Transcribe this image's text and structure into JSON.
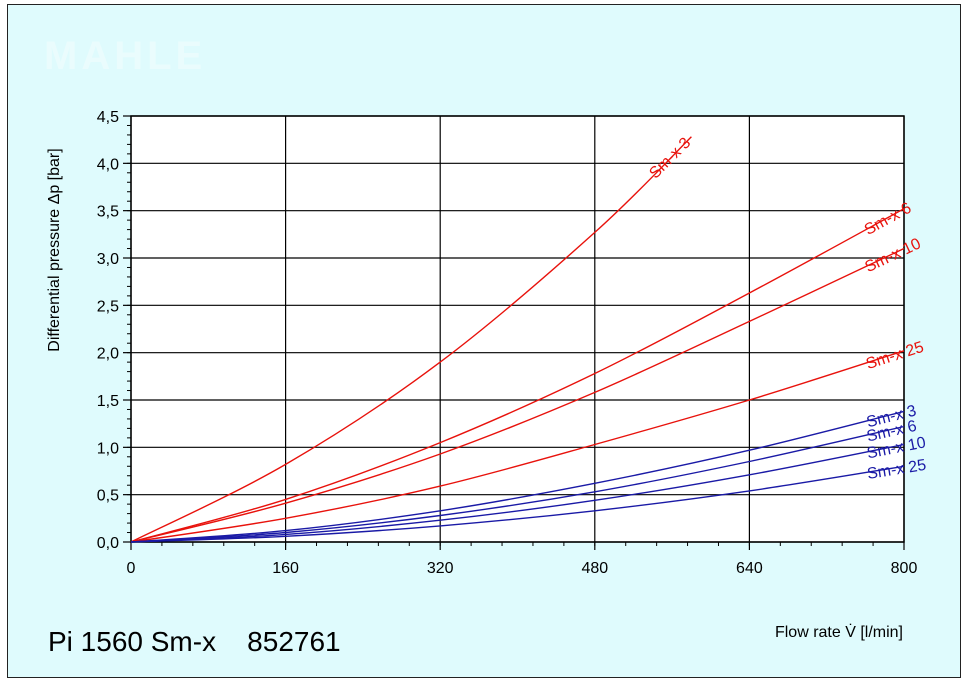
{
  "watermark": "MAHLE",
  "product_label": "Pi 1560 Sm-x    852761",
  "chart_data": {
    "type": "line",
    "title": "",
    "xlabel": "Flow rate V̇ [l/min]",
    "ylabel": "Differential pressure Δp [bar]",
    "xlim": [
      0,
      800
    ],
    "ylim": [
      0,
      4.5
    ],
    "x_ticks": [
      0,
      160,
      320,
      480,
      640,
      800
    ],
    "x_tick_labels": [
      "0",
      "160",
      "320",
      "480",
      "640",
      "800"
    ],
    "y_ticks": [
      0,
      0.5,
      1.0,
      1.5,
      2.0,
      2.5,
      3.0,
      3.5,
      4.0,
      4.5
    ],
    "y_tick_labels": [
      "0,0",
      "0,5",
      "1,0",
      "1,5",
      "2,0",
      "2,5",
      "3,0",
      "3,5",
      "4,0",
      "4,5"
    ],
    "grid": true,
    "series": [
      {
        "name": "Sm-x 3",
        "color": "#e8120c",
        "x": [
          0,
          160,
          320,
          480,
          580
        ],
        "y": [
          0,
          0.82,
          1.9,
          3.27,
          4.28
        ]
      },
      {
        "name": "Sm-x 6",
        "color": "#e8120c",
        "x": [
          0,
          160,
          320,
          480,
          640,
          800
        ],
        "y": [
          0,
          0.45,
          1.05,
          1.78,
          2.63,
          3.52
        ]
      },
      {
        "name": "Sm-x 10",
        "color": "#e8120c",
        "x": [
          0,
          160,
          320,
          480,
          640,
          800
        ],
        "y": [
          0,
          0.41,
          0.93,
          1.58,
          2.33,
          3.1
        ]
      },
      {
        "name": "Sm-x 25",
        "color": "#e8120c",
        "x": [
          0,
          160,
          320,
          480,
          640,
          800
        ],
        "y": [
          0,
          0.25,
          0.59,
          1.03,
          1.5,
          2.02
        ]
      },
      {
        "name": "Sm-x 3",
        "color": "#1a1aa6",
        "x": [
          0,
          160,
          320,
          480,
          640,
          800
        ],
        "y": [
          0,
          0.12,
          0.33,
          0.62,
          0.97,
          1.38
        ]
      },
      {
        "name": "Sm-x 6",
        "color": "#1a1aa6",
        "x": [
          0,
          160,
          320,
          480,
          640,
          800
        ],
        "y": [
          0,
          0.1,
          0.28,
          0.53,
          0.85,
          1.22
        ]
      },
      {
        "name": "Sm-x 10",
        "color": "#1a1aa6",
        "x": [
          0,
          160,
          320,
          480,
          640,
          800
        ],
        "y": [
          0,
          0.08,
          0.23,
          0.44,
          0.71,
          1.03
        ]
      },
      {
        "name": "Sm-x 25",
        "color": "#1a1aa6",
        "x": [
          0,
          160,
          320,
          480,
          640,
          800
        ],
        "y": [
          0,
          0.06,
          0.17,
          0.33,
          0.54,
          0.8
        ]
      }
    ]
  }
}
